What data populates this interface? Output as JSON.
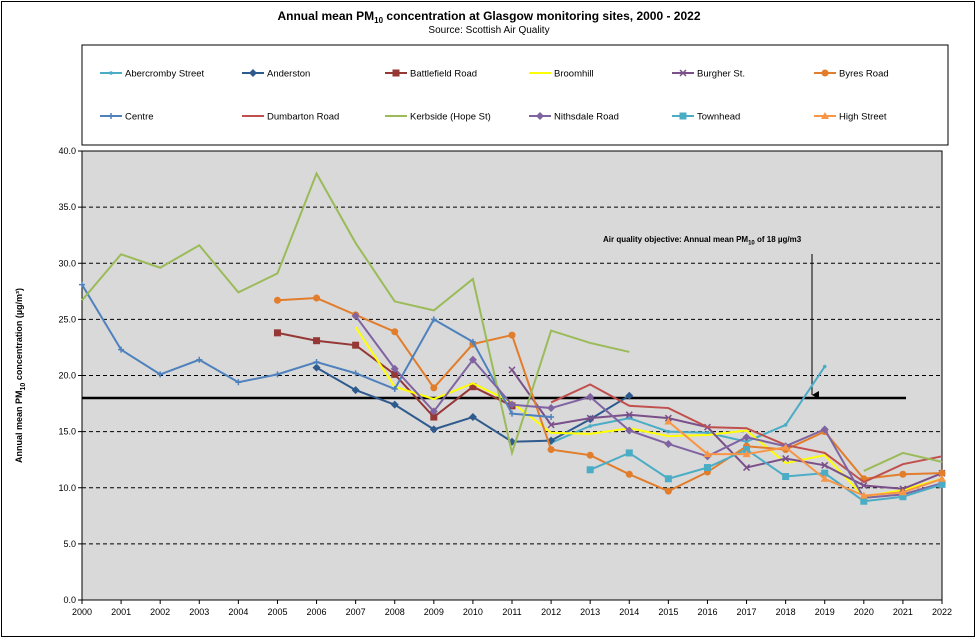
{
  "chart_data": {
    "type": "line",
    "title_main": "Annual mean PM",
    "title_sub": "10",
    "title_rest": " concentration at Glasgow monitoring sites, 2000 - 2022",
    "subtitle": "Source: Scottish Air Quality",
    "ylabel_main": "Annual mean PM",
    "ylabel_sub": "10",
    "ylabel_rest": " concentration (µg/m³)",
    "ylim": [
      0,
      40
    ],
    "yticks": [
      "0.0",
      "5.0",
      "10.0",
      "15.0",
      "20.0",
      "25.0",
      "30.0",
      "35.0",
      "40.0"
    ],
    "categories": [
      "2000",
      "2001",
      "2002",
      "2003",
      "2004",
      "2005",
      "2006",
      "2007",
      "2008",
      "2009",
      "2010",
      "2011",
      "2012",
      "2013",
      "2014",
      "2015",
      "2016",
      "2017",
      "2018",
      "2019",
      "2020",
      "2021",
      "2022"
    ],
    "objective": {
      "value": 18,
      "label_main": "Air quality objective: Annual mean PM",
      "label_sub": "10",
      "label_rest": " of 18 µg/m3"
    },
    "series": [
      {
        "name": "Abercromby Street",
        "color": "#4bacc6",
        "marker": "dot",
        "values": [
          null,
          null,
          null,
          null,
          null,
          null,
          null,
          null,
          null,
          null,
          null,
          null,
          14.0,
          15.5,
          16.2,
          15.0,
          14.9,
          14.1,
          15.6,
          20.8,
          null,
          null,
          null
        ]
      },
      {
        "name": "Anderston",
        "color": "#2e5a8e",
        "marker": "diamond",
        "values": [
          null,
          null,
          null,
          null,
          null,
          null,
          20.7,
          18.7,
          17.4,
          15.2,
          16.3,
          14.1,
          14.2,
          16.1,
          18.2,
          null,
          null,
          null,
          null,
          null,
          null,
          null,
          null
        ]
      },
      {
        "name": "Battlefield Road",
        "color": "#953735",
        "marker": "square",
        "values": [
          null,
          null,
          null,
          null,
          null,
          23.8,
          23.1,
          22.7,
          20.1,
          16.3,
          19.0,
          17.3,
          null,
          null,
          null,
          null,
          null,
          null,
          null,
          null,
          null,
          null,
          null
        ]
      },
      {
        "name": "Broomhill",
        "color": "#ffff00",
        "marker": "none",
        "values": [
          null,
          null,
          null,
          null,
          null,
          null,
          null,
          24.3,
          19.0,
          17.9,
          19.3,
          17.6,
          14.9,
          14.8,
          15.3,
          14.6,
          14.7,
          15.1,
          12.2,
          12.9,
          9.2,
          9.8,
          10.8
        ]
      },
      {
        "name": "Burgher St.",
        "color": "#7a4f8a",
        "marker": "x",
        "values": [
          null,
          null,
          null,
          null,
          null,
          null,
          null,
          null,
          null,
          null,
          null,
          20.5,
          15.6,
          16.2,
          16.5,
          16.2,
          15.4,
          11.8,
          12.6,
          12.0,
          10.2,
          9.9,
          11.3
        ]
      },
      {
        "name": "Byres Road",
        "color": "#e17d2b",
        "marker": "circle",
        "values": [
          null,
          null,
          null,
          null,
          null,
          26.7,
          26.9,
          25.4,
          23.9,
          18.9,
          22.8,
          23.6,
          13.4,
          12.9,
          11.2,
          9.7,
          11.4,
          13.7,
          13.4,
          15.0,
          10.8,
          11.2,
          11.3
        ]
      },
      {
        "name": "Centre",
        "color": "#4f81bd",
        "marker": "plus",
        "values": [
          28.1,
          22.3,
          20.1,
          21.4,
          19.4,
          20.1,
          21.2,
          20.2,
          18.8,
          25.0,
          23.0,
          16.6,
          16.3,
          null,
          null,
          null,
          null,
          null,
          null,
          null,
          null,
          null,
          null
        ]
      },
      {
        "name": "Dumbarton Road",
        "color": "#c0504d",
        "marker": "none",
        "values": [
          null,
          null,
          null,
          null,
          null,
          null,
          null,
          null,
          null,
          null,
          null,
          null,
          17.6,
          19.2,
          17.3,
          17.1,
          15.4,
          15.3,
          13.8,
          13.1,
          10.5,
          12.1,
          12.8
        ]
      },
      {
        "name": "Kerbside (Hope St)",
        "color": "#9bbb59",
        "marker": "none",
        "values": [
          26.7,
          30.8,
          29.6,
          31.6,
          27.4,
          29.1,
          38.0,
          31.8,
          26.6,
          25.8,
          28.6,
          13.1,
          24.0,
          22.9,
          22.1,
          null,
          null,
          null,
          null,
          null,
          11.5,
          13.1,
          12.3
        ]
      },
      {
        "name": "Nithsdale Road",
        "color": "#8064a2",
        "marker": "diamond",
        "values": [
          null,
          null,
          null,
          null,
          null,
          null,
          null,
          25.3,
          20.6,
          16.8,
          21.4,
          17.4,
          17.1,
          18.1,
          15.1,
          13.9,
          12.8,
          14.5,
          13.7,
          15.2,
          9.1,
          9.4,
          10.4
        ]
      },
      {
        "name": "Townhead",
        "color": "#4bacc6",
        "marker": "square",
        "values": [
          null,
          null,
          null,
          null,
          null,
          null,
          null,
          null,
          null,
          null,
          null,
          null,
          null,
          11.6,
          13.1,
          10.8,
          11.8,
          13.4,
          11.0,
          11.3,
          8.8,
          9.2,
          10.3
        ]
      },
      {
        "name": "High Street",
        "color": "#f79646",
        "marker": "triangle",
        "values": [
          null,
          null,
          null,
          null,
          null,
          null,
          null,
          null,
          null,
          null,
          null,
          null,
          null,
          null,
          null,
          15.9,
          13.0,
          13.0,
          13.6,
          10.8,
          9.3,
          9.6,
          10.8
        ]
      }
    ]
  }
}
